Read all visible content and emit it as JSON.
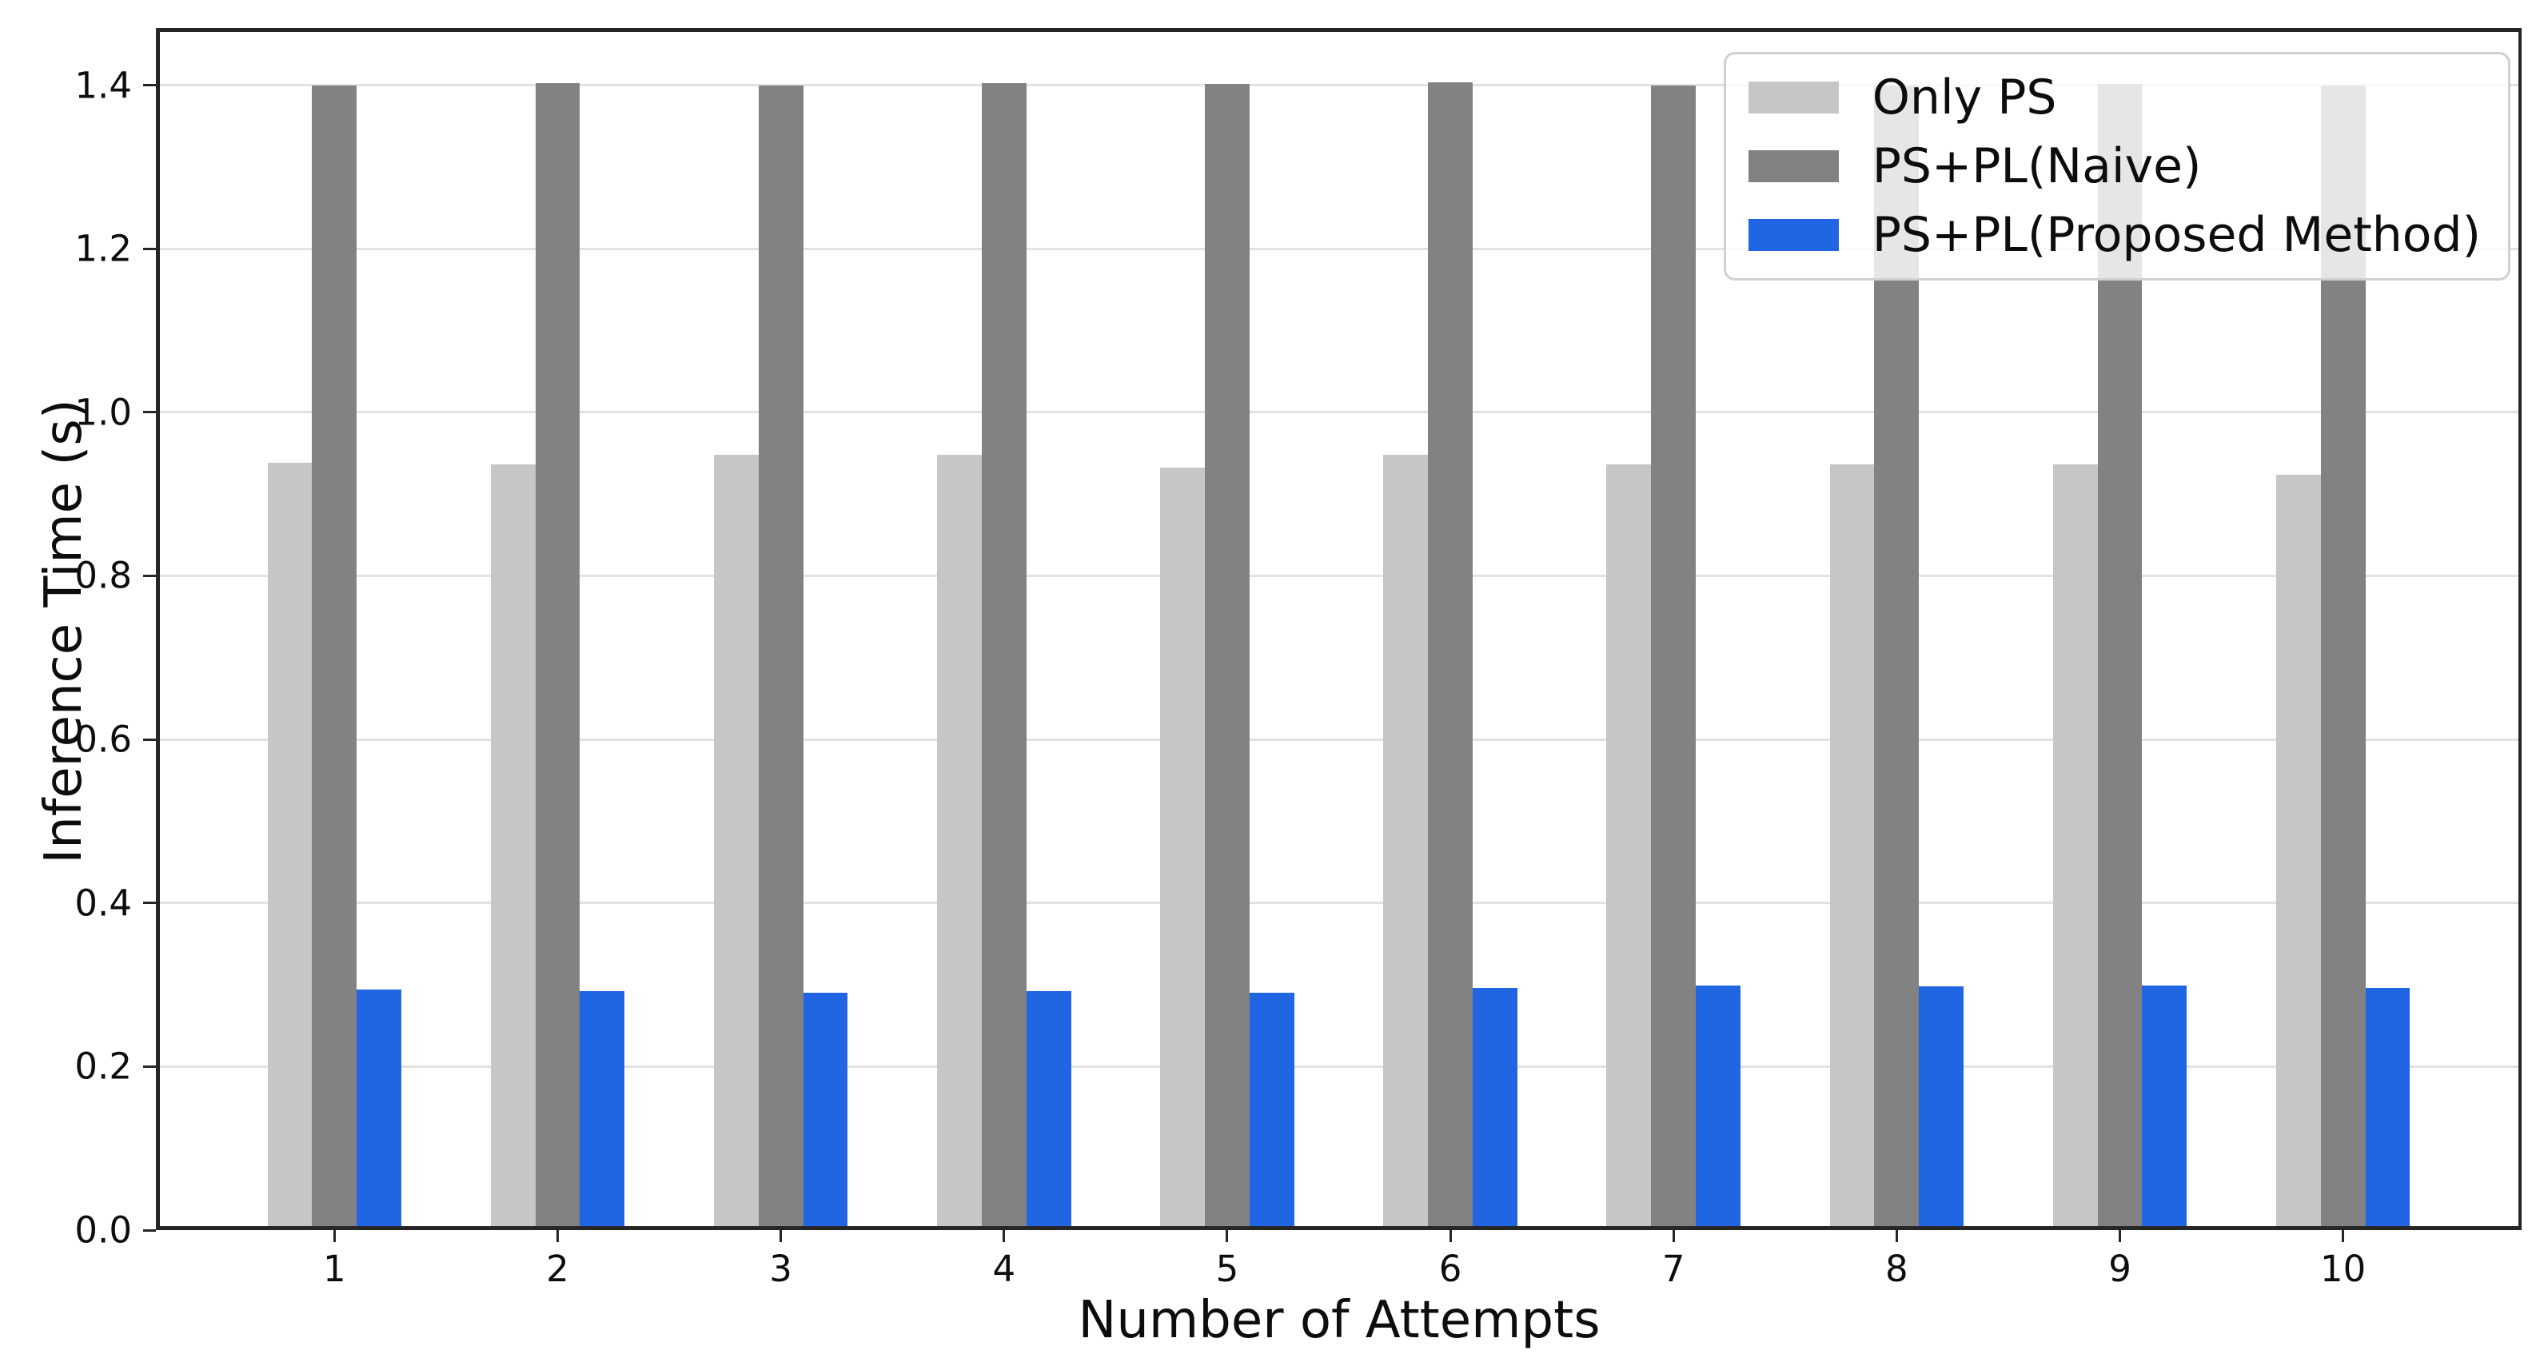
{
  "figure": {
    "background": "#ffffff",
    "text_color": "#0d0d0d",
    "spine_color": "#262626",
    "gridline_color": "#e2e2e2"
  },
  "chart_data": {
    "type": "bar",
    "title": "",
    "xlabel": "Number of Attempts",
    "ylabel": "Inference Time (s)",
    "categories": [
      "1",
      "2",
      "3",
      "4",
      "5",
      "6",
      "7",
      "8",
      "9",
      "10"
    ],
    "series": [
      {
        "name": "Only PS",
        "color": "#c6c6c6",
        "values": [
          0.938,
          0.936,
          0.948,
          0.948,
          0.932,
          0.948,
          0.936,
          0.936,
          0.936,
          0.924
        ]
      },
      {
        "name": "PS+PL(Naive)",
        "color": "#828282",
        "values": [
          1.4,
          1.403,
          1.4,
          1.403,
          1.402,
          1.404,
          1.4,
          1.4,
          1.402,
          1.4
        ]
      },
      {
        "name": "PS+PL(Proposed Method)",
        "color": "#2065e2",
        "values": [
          0.294,
          0.292,
          0.29,
          0.292,
          0.29,
          0.296,
          0.299,
          0.298,
          0.299,
          0.296
        ]
      }
    ],
    "bar_width": 0.2,
    "group_layout": "three adjacent bars per category, middle bar centered on tick",
    "xlim": [
      0.2,
      10.8
    ],
    "ylim": [
      0.0,
      1.47
    ],
    "yticks": [
      0.0,
      0.2,
      0.4,
      0.6,
      0.8,
      1.0,
      1.2,
      1.4
    ],
    "ytick_labels": [
      "0.0",
      "0.2",
      "0.4",
      "0.6",
      "0.8",
      "1.0",
      "1.2",
      "1.4"
    ],
    "grid": "horizontal",
    "legend": {
      "position": "upper right",
      "background": "rgba(255,255,255,0.8)",
      "border_color": "#d0d0d0"
    }
  }
}
